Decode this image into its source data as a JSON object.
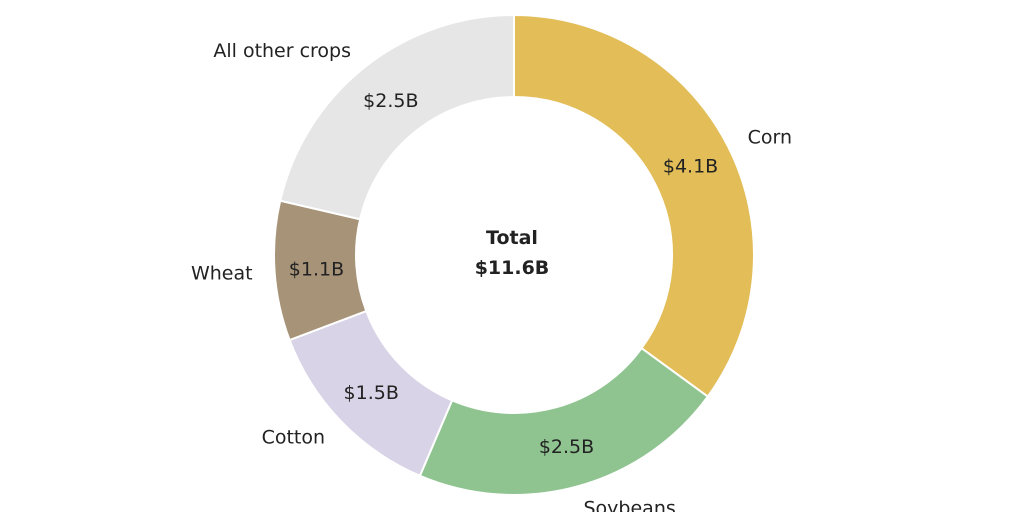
{
  "chart_data": {
    "type": "pie",
    "variant": "donut",
    "center_title": "Total",
    "center_value": "$11.6B",
    "unit": "billion USD",
    "slices": [
      {
        "category": "Corn",
        "value": 4.1,
        "value_label": "$4.1B",
        "color": "#e2bd58"
      },
      {
        "category": "Soybeans",
        "value": 2.5,
        "value_label": "$2.5B",
        "color": "#8fc491"
      },
      {
        "category": "Cotton",
        "value": 1.5,
        "value_label": "$1.5B",
        "color": "#d8d3e6"
      },
      {
        "category": "Wheat",
        "value": 1.1,
        "value_label": "$1.1B",
        "color": "#a69378"
      },
      {
        "category": "All other crops",
        "value": 2.5,
        "value_label": "$2.5B",
        "color": "#e6e6e6"
      }
    ],
    "start": "12 o'clock",
    "direction": "clockwise",
    "legend": "none"
  }
}
